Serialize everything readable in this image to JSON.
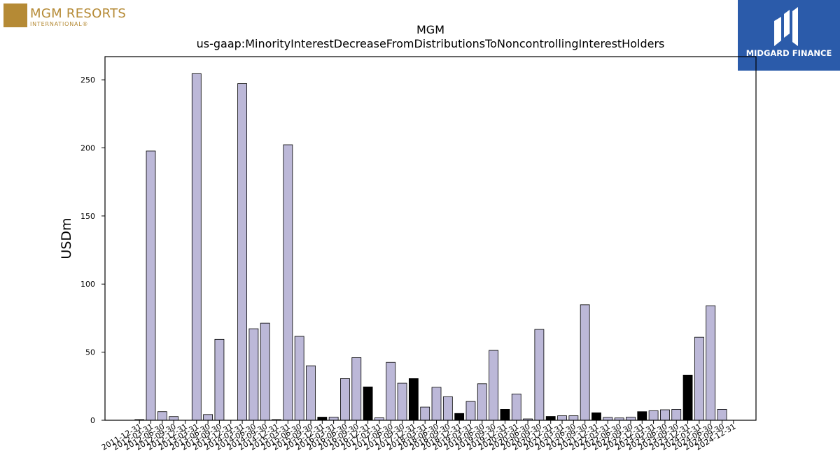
{
  "branding": {
    "left_logo_name": "MGM RESORTS",
    "left_logo_sub": "INTERNATIONAL®",
    "right_logo_name": "MIDGARD FINANCE"
  },
  "chart_data": {
    "type": "bar",
    "title": "MGM",
    "subtitle": "us-gaap:MinorityInterestDecreaseFromDistributionsToNoncontrollingInterestHolders",
    "xlabel": "",
    "ylabel": "USDm",
    "ylim": [
      0,
      267
    ],
    "yticks": [
      0,
      50,
      100,
      150,
      200,
      250
    ],
    "grid": false,
    "colors": {
      "quarterly": "#bcb8d8",
      "annual": "#000000",
      "edge": "#000000"
    },
    "categories": [
      "2011-12-31",
      "2012-03-31",
      "2012-06-30",
      "2012-09-30",
      "2012-12-31",
      "2013-03-31",
      "2013-06-30",
      "2013-09-30",
      "2013-12-31",
      "2014-03-31",
      "2014-06-30",
      "2014-09-30",
      "2014-12-31",
      "2015-03-31",
      "2015-06-30",
      "2015-09-30",
      "2015-12-31",
      "2016-03-31",
      "2016-06-30",
      "2016-09-30",
      "2016-12-31",
      "2017-03-31",
      "2017-06-30",
      "2017-09-30",
      "2017-12-31",
      "2018-03-31",
      "2018-06-30",
      "2018-09-30",
      "2018-12-31",
      "2019-03-31",
      "2019-06-30",
      "2019-09-30",
      "2019-12-31",
      "2020-03-31",
      "2020-06-30",
      "2020-09-30",
      "2020-12-31",
      "2021-03-31",
      "2021-06-30",
      "2021-09-30",
      "2021-12-31",
      "2022-03-31",
      "2022-06-30",
      "2022-09-30",
      "2022-12-31",
      "2023-03-31",
      "2023-06-30",
      "2023-09-30",
      "2023-12-31",
      "2024-03-31",
      "2024-06-30",
      "2024-09-30",
      "2024-12-31"
    ],
    "values": [
      0.5,
      197.7,
      6.3,
      2.7,
      0,
      254.5,
      4.2,
      59.4,
      0,
      247.2,
      67.2,
      71.3,
      0.5,
      202.3,
      61.6,
      40.0,
      2.3,
      2.3,
      30.6,
      46.0,
      24.5,
      1.8,
      42.5,
      27.2,
      30.6,
      9.7,
      24.2,
      17.3,
      5.0,
      13.8,
      26.8,
      51.3,
      8.0,
      19.3,
      1.0,
      66.7,
      2.8,
      3.3,
      3.3,
      84.8,
      5.5,
      2.1,
      1.7,
      2.3,
      6.3,
      7.0,
      7.7,
      8.0,
      33.2,
      61.0,
      84.1,
      8.0,
      null
    ],
    "bar_type": [
      "annual",
      "quarterly",
      "quarterly",
      "quarterly",
      "annual",
      "quarterly",
      "quarterly",
      "quarterly",
      "annual",
      "quarterly",
      "quarterly",
      "quarterly",
      "annual",
      "quarterly",
      "quarterly",
      "quarterly",
      "annual",
      "quarterly",
      "quarterly",
      "quarterly",
      "annual",
      "quarterly",
      "quarterly",
      "quarterly",
      "annual",
      "quarterly",
      "quarterly",
      "quarterly",
      "annual",
      "quarterly",
      "quarterly",
      "quarterly",
      "annual",
      "quarterly",
      "quarterly",
      "quarterly",
      "annual",
      "quarterly",
      "quarterly",
      "quarterly",
      "annual",
      "quarterly",
      "quarterly",
      "quarterly",
      "annual",
      "quarterly",
      "quarterly",
      "quarterly",
      "annual",
      "quarterly",
      "quarterly",
      "quarterly",
      "annual"
    ]
  }
}
